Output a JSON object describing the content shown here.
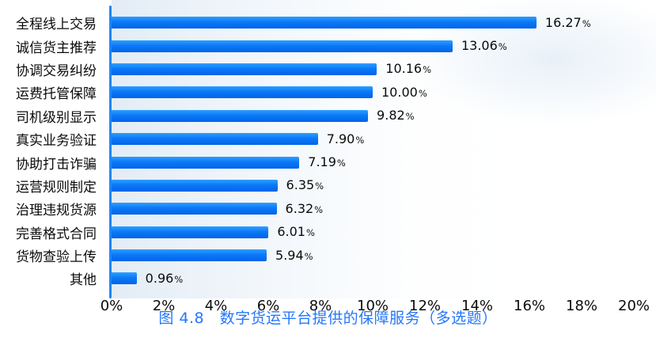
{
  "chart_data": {
    "type": "bar",
    "orientation": "horizontal",
    "title": "图 4.8　数字货运平台提供的保障服务（多选题）",
    "categories": [
      "全程线上交易",
      "诚信货主推荐",
      "协调交易纠纷",
      "运费托管保障",
      "司机级别显示",
      "真实业务验证",
      "协助打击诈骗",
      "运营规则制定",
      "治理违规货源",
      "完善格式合同",
      "货物查验上传",
      "其他"
    ],
    "values": [
      16.27,
      13.06,
      10.16,
      10.0,
      9.82,
      7.9,
      7.19,
      6.35,
      6.32,
      6.01,
      5.94,
      0.96
    ],
    "value_label_suffix": "%",
    "x_ticks": [
      "0%",
      "2%",
      "4%",
      "6%",
      "8%",
      "10%",
      "12%",
      "14%",
      "16%",
      "18%",
      "20%"
    ],
    "xlim": [
      0,
      20
    ],
    "grid": false,
    "legend": false,
    "colors": {
      "bar_gradient_top": "#2e9fff",
      "bar_gradient_mid": "#0c79f7",
      "bar_gradient_bottom": "#0063e9",
      "axis_line": "#1f86f7",
      "label_text": "#0b0b0b",
      "title_text": "#2577fa"
    }
  }
}
